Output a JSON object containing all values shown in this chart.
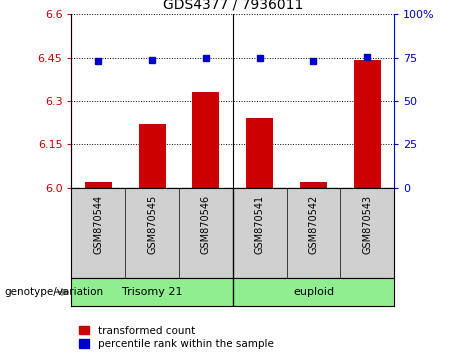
{
  "title": "GDS4377 / 7936011",
  "samples": [
    "GSM870544",
    "GSM870545",
    "GSM870546",
    "GSM870541",
    "GSM870542",
    "GSM870543"
  ],
  "red_values": [
    6.02,
    6.22,
    6.33,
    6.24,
    6.02,
    6.44
  ],
  "blue_values": [
    73.0,
    73.5,
    74.7,
    74.7,
    73.0,
    75.3
  ],
  "ymin": 6.0,
  "ymax": 6.6,
  "y_ticks_left": [
    6.0,
    6.15,
    6.3,
    6.45,
    6.6
  ],
  "y_ticks_right": [
    0,
    25,
    50,
    75,
    100
  ],
  "y2_tick_labels": [
    "0",
    "25",
    "50",
    "75",
    "100%"
  ],
  "left_color": "#cc0000",
  "blue_color": "#0000cc",
  "label_red": "transformed count",
  "label_blue": "percentile rank within the sample",
  "genotype_label": "genotype/variation",
  "group_boundary": 2.5,
  "trisomy_label": "Trisomy 21",
  "euploid_label": "euploid",
  "gray_bg": "#d0d0d0",
  "green_bg": "#90EE90",
  "bar_width": 0.5
}
